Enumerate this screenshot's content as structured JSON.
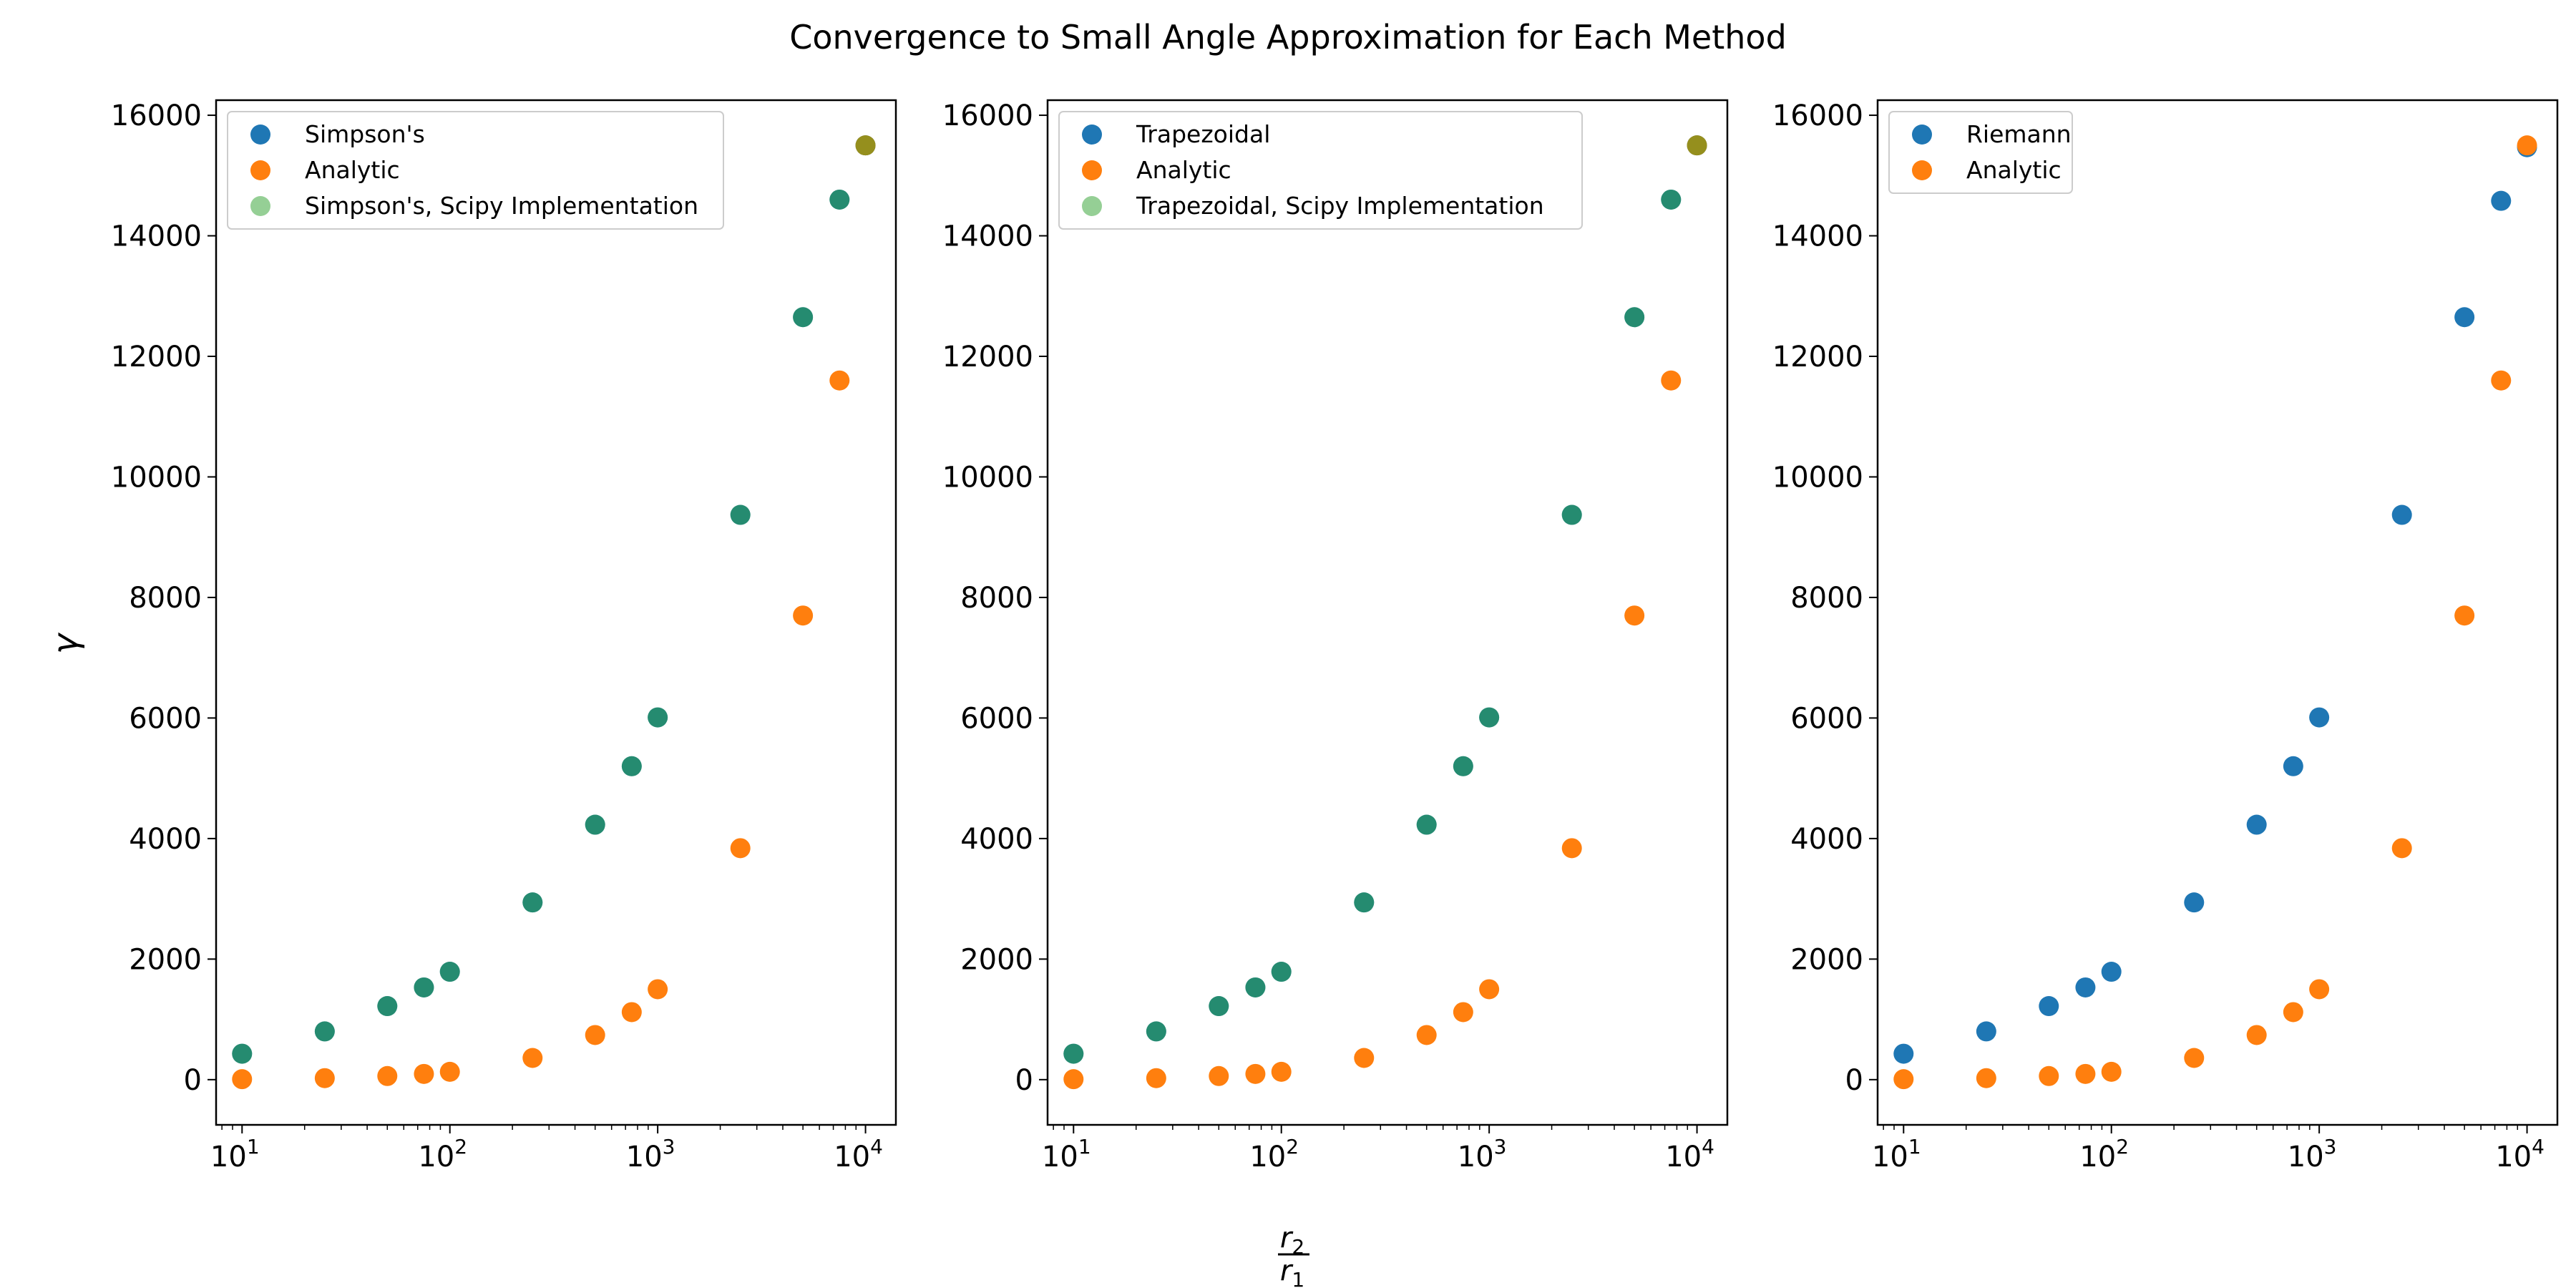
{
  "figure": {
    "title": "Convergence to Small Angle Approximation for Each Method",
    "ylabel": "γ",
    "xlabel_num": "r",
    "xlabel_num_sub": "2",
    "xlabel_den": "r",
    "xlabel_den_sub": "1"
  },
  "colors": {
    "blue": "#1f77b4",
    "orange": "#ff7f0e",
    "green": "#2ca02c"
  },
  "chart_data": [
    {
      "type": "scatter",
      "x_scale": "log",
      "xlim": [
        7.5,
        14000
      ],
      "ylim": [
        -750,
        16250
      ],
      "x_ticks": [
        {
          "value": 10,
          "base": "10",
          "exp": "1"
        },
        {
          "value": 100,
          "base": "10",
          "exp": "2"
        },
        {
          "value": 1000,
          "base": "10",
          "exp": "3"
        },
        {
          "value": 10000,
          "base": "10",
          "exp": "4"
        }
      ],
      "y_ticks": [
        "0",
        "2000",
        "4000",
        "6000",
        "8000",
        "10000",
        "12000",
        "14000",
        "16000"
      ],
      "legend_placement": "upper-left",
      "x": [
        10,
        25,
        50,
        75,
        100,
        250,
        500,
        750,
        1000,
        2500,
        5000,
        7500,
        10000
      ],
      "series": [
        {
          "name": "Simpson's",
          "color": "#1f77b4",
          "alpha": 1,
          "values": [
            430,
            800,
            1220,
            1530,
            1790,
            2940,
            4230,
            5200,
            6010,
            9370,
            12650,
            14600,
            15500
          ]
        },
        {
          "name": "Analytic",
          "color": "#ff7f0e",
          "alpha": 1,
          "values": [
            8,
            25,
            60,
            95,
            130,
            360,
            740,
            1120,
            1500,
            3840,
            7700,
            11600,
            15500
          ]
        },
        {
          "name": "Simpson's, Scipy Implementation",
          "color": "#2ca02c",
          "alpha": 0.5,
          "values": [
            430,
            800,
            1220,
            1530,
            1790,
            2940,
            4230,
            5200,
            6010,
            9370,
            12650,
            14600,
            15500
          ]
        }
      ]
    },
    {
      "type": "scatter",
      "x_scale": "log",
      "xlim": [
        7.5,
        14000
      ],
      "ylim": [
        -750,
        16250
      ],
      "x_ticks": [
        {
          "value": 10,
          "base": "10",
          "exp": "1"
        },
        {
          "value": 100,
          "base": "10",
          "exp": "2"
        },
        {
          "value": 1000,
          "base": "10",
          "exp": "3"
        },
        {
          "value": 10000,
          "base": "10",
          "exp": "4"
        }
      ],
      "y_ticks": [
        "0",
        "2000",
        "4000",
        "6000",
        "8000",
        "10000",
        "12000",
        "14000",
        "16000"
      ],
      "legend_placement": "upper-left",
      "x": [
        10,
        25,
        50,
        75,
        100,
        250,
        500,
        750,
        1000,
        2500,
        5000,
        7500,
        10000
      ],
      "series": [
        {
          "name": "Trapezoidal",
          "color": "#1f77b4",
          "alpha": 1,
          "values": [
            430,
            800,
            1220,
            1530,
            1790,
            2940,
            4230,
            5200,
            6010,
            9370,
            12650,
            14600,
            15500
          ]
        },
        {
          "name": "Analytic",
          "color": "#ff7f0e",
          "alpha": 1,
          "values": [
            8,
            25,
            60,
            95,
            130,
            360,
            740,
            1120,
            1500,
            3840,
            7700,
            11600,
            15500
          ]
        },
        {
          "name": "Trapezoidal, Scipy Implementation",
          "color": "#2ca02c",
          "alpha": 0.5,
          "values": [
            430,
            800,
            1220,
            1530,
            1790,
            2940,
            4230,
            5200,
            6010,
            9370,
            12650,
            14600,
            15500
          ]
        }
      ]
    },
    {
      "type": "scatter",
      "x_scale": "log",
      "xlim": [
        7.5,
        14000
      ],
      "ylim": [
        -750,
        16250
      ],
      "x_ticks": [
        {
          "value": 10,
          "base": "10",
          "exp": "1"
        },
        {
          "value": 100,
          "base": "10",
          "exp": "2"
        },
        {
          "value": 1000,
          "base": "10",
          "exp": "3"
        },
        {
          "value": 10000,
          "base": "10",
          "exp": "4"
        }
      ],
      "y_ticks": [
        "0",
        "2000",
        "4000",
        "6000",
        "8000",
        "10000",
        "12000",
        "14000",
        "16000"
      ],
      "legend_placement": "upper-left",
      "x": [
        10,
        25,
        50,
        75,
        100,
        250,
        500,
        750,
        1000,
        2500,
        5000,
        7500,
        10000
      ],
      "series": [
        {
          "name": "Riemann",
          "color": "#1f77b4",
          "alpha": 1,
          "values": [
            430,
            800,
            1220,
            1530,
            1790,
            2940,
            4230,
            5200,
            6010,
            9370,
            12650,
            14580,
            15470
          ]
        },
        {
          "name": "Analytic",
          "color": "#ff7f0e",
          "alpha": 1,
          "values": [
            8,
            25,
            60,
            95,
            130,
            360,
            740,
            1120,
            1500,
            3840,
            7700,
            11600,
            15500
          ]
        }
      ]
    }
  ]
}
